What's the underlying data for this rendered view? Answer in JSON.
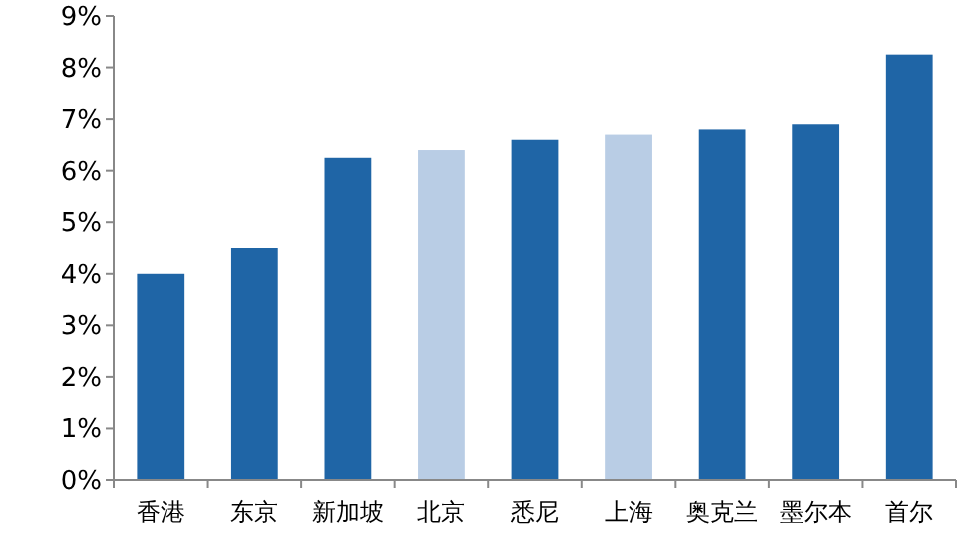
{
  "chart_data": {
    "type": "bar",
    "categories": [
      "香港",
      "东京",
      "新加坡",
      "北京",
      "悉尼",
      "上海",
      "奥克兰",
      "墨尔本",
      "首尔"
    ],
    "values": [
      4.0,
      4.5,
      6.25,
      6.4,
      6.6,
      6.7,
      6.8,
      6.9,
      8.25
    ],
    "colors": [
      "#1f65a6",
      "#1f65a6",
      "#1f65a6",
      "#b9cde5",
      "#1f65a6",
      "#b9cde5",
      "#1f65a6",
      "#1f65a6",
      "#1f65a6"
    ],
    "ylim": [
      0,
      9
    ],
    "yticks": [
      {
        "value": 0,
        "label": "0%"
      },
      {
        "value": 1,
        "label": "1%"
      },
      {
        "value": 2,
        "label": "2%"
      },
      {
        "value": 3,
        "label": "3%"
      },
      {
        "value": 4,
        "label": "4%"
      },
      {
        "value": 5,
        "label": "5%"
      },
      {
        "value": 6,
        "label": "6%"
      },
      {
        "value": 7,
        "label": "7%"
      },
      {
        "value": 8,
        "label": "8%"
      },
      {
        "value": 9,
        "label": "9%"
      }
    ],
    "grid": false
  }
}
